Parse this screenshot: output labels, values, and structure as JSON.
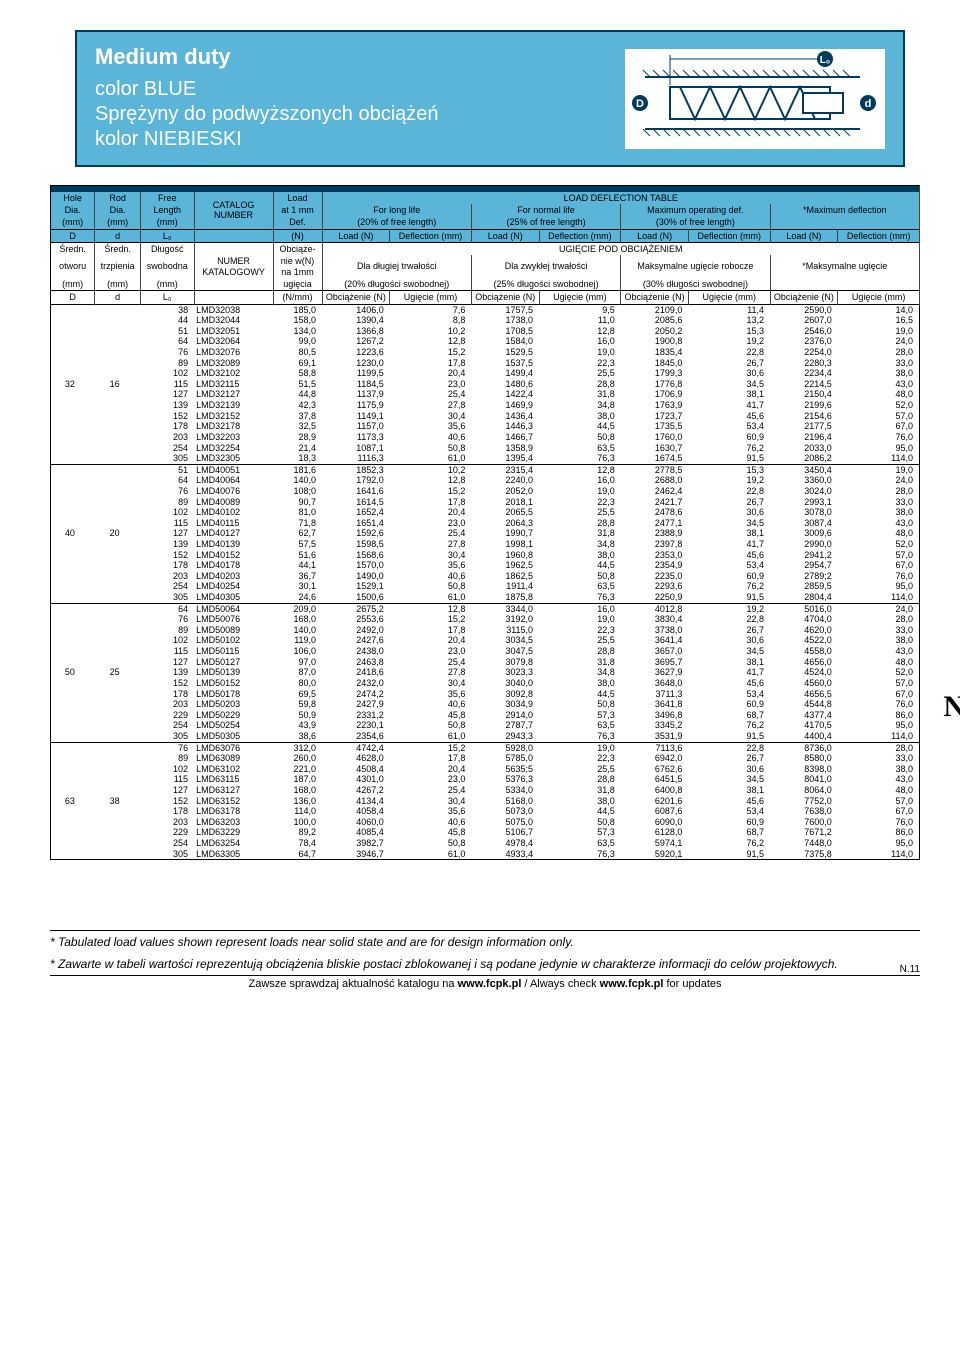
{
  "header": {
    "title1": "Medium duty",
    "title2a": "color BLUE",
    "title2b": "Sprężyny do podwyższonych obciążeń",
    "title2c": "kolor NIEBIESKI"
  },
  "th": {
    "hole": "Hole",
    "dia": "Dia.",
    "mm": "(mm)",
    "rod": "Rod",
    "free": "Free",
    "length": "Length",
    "catalog": "CATALOG",
    "number": "NUMBER",
    "load": "Load",
    "at1mm": "at 1 mm",
    "def": "Def.",
    "ldt": "LOAD DEFLECTION TABLE",
    "forlong": "For long life",
    "fornormal": "For normal life",
    "maxop": "Maximum operating def.",
    "maxdef": "*Maximum deflection",
    "p20": "(20% of free length)",
    "p25": "(25% of free length)",
    "p30": "(30% of free length)",
    "D": "D",
    "d": "d",
    "L0": "L₀",
    "N": "(N)",
    "loadn": "Load (N)",
    "defmm": "Deflection (mm)",
    "sredot": "Średn.",
    "otworu": "otworu",
    "trzp": "trzpienia",
    "dlugosc": "Długość",
    "swob": "swobodna",
    "numer": "NUMER",
    "katal": "KATALOGOWY",
    "obc": "Obciąże-",
    "niewn": "nie w(N)",
    "na1mm": "na 1mm",
    "ugiecia": "ugięcia",
    "nmm": "(N/mm)",
    "upo": "UGIĘCIE POD OBCIĄŻENIEM",
    "dladlu": "Dla długiej trwałości",
    "dlazwy": "Dla zwykłej trwałości",
    "maksug": "Maksymalne ugięcie robocze",
    "maksugm": "*Maksymalne ugięcie",
    "pd20": "(20% długości swobodnej)",
    "pd25": "(25% długości swobodnej)",
    "pd30": "(30% długości swobodnej)",
    "obcn": "Obciążenie (N)",
    "ugmm": "Ugięcie (mm)"
  },
  "groups": [
    {
      "D": "32",
      "d": "16",
      "rows": [
        [
          "38",
          "LMD32038",
          "185,0",
          "1406,0",
          "7,6",
          "1757,5",
          "9,5",
          "2109,0",
          "11,4",
          "2590,0",
          "14,0"
        ],
        [
          "44",
          "LMD32044",
          "158,0",
          "1390,4",
          "8,8",
          "1738,0",
          "11,0",
          "2085,6",
          "13,2",
          "2607,0",
          "16,5"
        ],
        [
          "51",
          "LMD32051",
          "134,0",
          "1366,8",
          "10,2",
          "1708,5",
          "12,8",
          "2050,2",
          "15,3",
          "2546,0",
          "19,0"
        ],
        [
          "64",
          "LMD32064",
          "99,0",
          "1267,2",
          "12,8",
          "1584,0",
          "16,0",
          "1900,8",
          "19,2",
          "2376,0",
          "24,0"
        ],
        [
          "76",
          "LMD32076",
          "80,5",
          "1223,6",
          "15,2",
          "1529,5",
          "19,0",
          "1835,4",
          "22,8",
          "2254,0",
          "28,0"
        ],
        [
          "89",
          "LMD32089",
          "69,1",
          "1230,0",
          "17,8",
          "1537,5",
          "22,3",
          "1845,0",
          "26,7",
          "2280,3",
          "33,0"
        ],
        [
          "102",
          "LMD32102",
          "58,8",
          "1199,5",
          "20,4",
          "1499,4",
          "25,5",
          "1799,3",
          "30,6",
          "2234,4",
          "38,0"
        ],
        [
          "115",
          "LMD32115",
          "51,5",
          "1184,5",
          "23,0",
          "1480,6",
          "28,8",
          "1776,8",
          "34,5",
          "2214,5",
          "43,0"
        ],
        [
          "127",
          "LMD32127",
          "44,8",
          "1137,9",
          "25,4",
          "1422,4",
          "31,8",
          "1706,9",
          "38,1",
          "2150,4",
          "48,0"
        ],
        [
          "139",
          "LMD32139",
          "42,3",
          "1175,9",
          "27,8",
          "1469,9",
          "34,8",
          "1763,9",
          "41,7",
          "2199,6",
          "52,0"
        ],
        [
          "152",
          "LMD32152",
          "37,8",
          "1149,1",
          "30,4",
          "1436,4",
          "38,0",
          "1723,7",
          "45,6",
          "2154,6",
          "57,0"
        ],
        [
          "178",
          "LMD32178",
          "32,5",
          "1157,0",
          "35,6",
          "1446,3",
          "44,5",
          "1735,5",
          "53,4",
          "2177,5",
          "67,0"
        ],
        [
          "203",
          "LMD32203",
          "28,9",
          "1173,3",
          "40,6",
          "1466,7",
          "50,8",
          "1760,0",
          "60,9",
          "2196,4",
          "76,0"
        ],
        [
          "254",
          "LMD32254",
          "21,4",
          "1087,1",
          "50,8",
          "1358,9",
          "63,5",
          "1630,7",
          "76,2",
          "2033,0",
          "95,0"
        ],
        [
          "305",
          "LMD32305",
          "18,3",
          "1116,3",
          "61,0",
          "1395,4",
          "76,3",
          "1674,5",
          "91,5",
          "2086,2",
          "114,0"
        ]
      ]
    },
    {
      "D": "40",
      "d": "20",
      "rows": [
        [
          "51",
          "LMD40051",
          "181,6",
          "1852,3",
          "10,2",
          "2315,4",
          "12,8",
          "2778,5",
          "15,3",
          "3450,4",
          "19,0"
        ],
        [
          "64",
          "LMD40064",
          "140,0",
          "1792,0",
          "12,8",
          "2240,0",
          "16,0",
          "2688,0",
          "19,2",
          "3360,0",
          "24,0"
        ],
        [
          "76",
          "LMD40076",
          "108;0",
          "1641,6",
          "15,2",
          "2052,0",
          "19,0",
          "2462,4",
          "22,8",
          "3024,0",
          "28,0"
        ],
        [
          "89",
          "LMD40089",
          "90,7",
          "1614,5",
          "17,8",
          "2018,1",
          "22,3",
          "2421,7",
          "26,7",
          "2993,1",
          "33,0"
        ],
        [
          "102",
          "LMD40102",
          "81,0",
          "1652,4",
          "20,4",
          "2065,5",
          "25,5",
          "2478,6",
          "30,6",
          "3078,0",
          "38,0"
        ],
        [
          "115",
          "LMD40115",
          "71,8",
          "1651,4",
          "23,0",
          "2064,3",
          "28,8",
          "2477,1",
          "34,5",
          "3087,4",
          "43,0"
        ],
        [
          "127",
          "LMD40127",
          "62,7",
          "1592,6",
          "25,4",
          "1990,7",
          "31,8",
          "2388,9",
          "38,1",
          "3009,6",
          "48,0"
        ],
        [
          "139",
          "LMD40139",
          "57,5",
          "1598,5",
          "27,8",
          "1998,1",
          "34,8",
          "2397,8",
          "41,7",
          "2990,0",
          "52,0"
        ],
        [
          "152",
          "LMD40152",
          "51,6",
          "1568,6",
          "30,4",
          "1960,8",
          "38,0",
          "2353,0",
          "45,6",
          "2941,2",
          "57,0"
        ],
        [
          "178",
          "LMD40178",
          "44,1",
          "1570,0",
          "35,6",
          "1962,5",
          "44,5",
          "2354,9",
          "53,4",
          "2954,7",
          "67,0"
        ],
        [
          "203",
          "LMD40203",
          "36,7",
          "1490,0",
          "40,6",
          "1862,5",
          "50,8",
          "2235,0",
          "60,9",
          "2789;2",
          "76,0"
        ],
        [
          "254",
          "LMD40254",
          "30,1",
          "1529,1",
          "50,8",
          "1911,4",
          "63,5",
          "2293,6",
          "76,2",
          "2859,5",
          "95,0"
        ],
        [
          "305",
          "LMD40305",
          "24,6",
          "1500,6",
          "61,0",
          "1875,8",
          "76,3",
          "2250,9",
          "91,5",
          "2804,4",
          "114,0"
        ]
      ]
    },
    {
      "D": "50",
      "d": "25",
      "rows": [
        [
          "64",
          "LMD50064",
          "209,0",
          "2675,2",
          "12,8",
          "3344,0",
          "16,0",
          "4012,8",
          "19,2",
          "5016,0",
          "24,0"
        ],
        [
          "76",
          "LMD50076",
          "168,0",
          "2553,6",
          "15,2",
          "3192,0",
          "19,0",
          "3830,4",
          "22,8",
          "4704,0",
          "28,0"
        ],
        [
          "89",
          "LMD50089",
          "140,0",
          "2492,0",
          "17,8",
          "3115,0",
          "22,3",
          "3738,0",
          "26,7",
          "4620,0",
          "33,0"
        ],
        [
          "102",
          "LMD50102",
          "119,0",
          "2427,6",
          "20,4",
          "3034,5",
          "25,5",
          "3641,4",
          "30,6",
          "4522,0",
          "38,0"
        ],
        [
          "115",
          "LMD50115",
          "106,0",
          "2438,0",
          "23,0",
          "3047,5",
          "28,8",
          "3657,0",
          "34,5",
          "4558,0",
          "43,0"
        ],
        [
          "127",
          "LMD50127",
          "97,0",
          "2463,8",
          "25,4",
          "3079,8",
          "31,8",
          "3695,7",
          "38,1",
          "4656,0",
          "48,0"
        ],
        [
          "139",
          "LMD50139",
          "87,0",
          "2418,6",
          "27,8",
          "3023,3",
          "34,8",
          "3627,9",
          "41,7",
          "4524,0",
          "52,0"
        ],
        [
          "152",
          "LMD50152",
          "80,0",
          "2432,0",
          "30,4",
          "3040,0",
          "38,0",
          "3648,0",
          "45,6",
          "4560,0",
          "57,0"
        ],
        [
          "178",
          "LMD50178",
          "69,5",
          "2474,2",
          "35,6",
          "3092,8",
          "44,5",
          "3711,3",
          "53,4",
          "4656,5",
          "67,0"
        ],
        [
          "203",
          "LMD50203",
          "59,8",
          "2427,9",
          "40,6",
          "3034,9",
          "50,8",
          "3641,8",
          "60,9",
          "4544,8",
          "76,0"
        ],
        [
          "229",
          "LMD50229",
          "50,9",
          "2331,2",
          "45,8",
          "2914,0",
          "57,3",
          "3496,8",
          "68,7",
          "4377,4",
          "86,0"
        ],
        [
          "254",
          "LMD50254",
          "43,9",
          "2230,1",
          "50,8",
          "2787,7",
          "63,5",
          "3345,2",
          "76,2",
          "4170,5",
          "95,0"
        ],
        [
          "305",
          "LMD50305",
          "38,6",
          "2354,6",
          "61,0",
          "2943,3",
          "76,3",
          "3531,9",
          "91,5",
          "4400,4",
          "114,0"
        ]
      ]
    },
    {
      "D": "63",
      "d": "38",
      "rows": [
        [
          "76",
          "LMD63076",
          "312,0",
          "4742,4",
          "15,2",
          "5928,0",
          "19,0",
          "7113,6",
          "22,8",
          "8736,0",
          "28,0"
        ],
        [
          "89",
          "LMD63089",
          "260,0",
          "4628,0",
          "17,8",
          "5785,0",
          "22,3",
          "6942,0",
          "26,7",
          "8580,0",
          "33,0"
        ],
        [
          "102",
          "LMD63102",
          "221,0",
          "4508,4",
          "20,4",
          "5635;5",
          "25,5",
          "6762,6",
          "30,6",
          "8398,0",
          "38,0"
        ],
        [
          "115",
          "LMD63115",
          "187,0",
          "4301,0",
          "23,0",
          "5376,3",
          "28,8",
          "6451,5",
          "34,5",
          "8041,0",
          "43,0"
        ],
        [
          "127",
          "LMD63127",
          "168,0",
          "4267,2",
          "25,4",
          "5334,0",
          "31,8",
          "6400,8",
          "38,1",
          "8064,0",
          "48,0"
        ],
        [
          "152",
          "LMD63152",
          "136,0",
          "4134,4",
          "30,4",
          "5168,0",
          "38,0",
          "6201,6",
          "45,6",
          "7752,0",
          "57,0"
        ],
        [
          "178",
          "LMD63178",
          "114,0",
          "4058,4",
          "35,6",
          "5073,0",
          "44,5",
          "6087,6",
          "53,4",
          "7638,0",
          "67,0"
        ],
        [
          "203",
          "LMD63203",
          "100,0",
          "4060,0",
          "40,6",
          "5075,0",
          "50,8",
          "6090,0",
          "60,9",
          "7600,0",
          "76,0"
        ],
        [
          "229",
          "LMD63229",
          "89,2",
          "4085,4",
          "45,8",
          "5106,7",
          "57,3",
          "6128,0",
          "68,7",
          "7671,2",
          "86,0"
        ],
        [
          "254",
          "LMD63254",
          "78,4",
          "3982,7",
          "50,8",
          "4978,4",
          "63,5",
          "5974,1",
          "76,2",
          "7448,0",
          "95,0"
        ],
        [
          "305",
          "LMD63305",
          "64,7",
          "3946,7",
          "61,0",
          "4933,4",
          "76,3",
          "5920,1",
          "91,5",
          "7375,8",
          "114,0"
        ]
      ]
    }
  ],
  "foot": {
    "note1": "* Tabulated load values shown represent loads near solid state and are for design information only.",
    "note2": "* Zawarte w tabeli wartości reprezentują obciążenia bliskie postaci zblokowanej i są podane jedynie w charakterze informacji do celów projektowych.",
    "check_pl": "Zawsze sprawdzaj aktualność katalogu na ",
    "url1": "www.fcpk.pl",
    "sep": " / ",
    "check_en": "Always check ",
    "url2": "www.fcpk.pl",
    "upd": " for updates",
    "pn": "N.11",
    "tab": "N"
  }
}
